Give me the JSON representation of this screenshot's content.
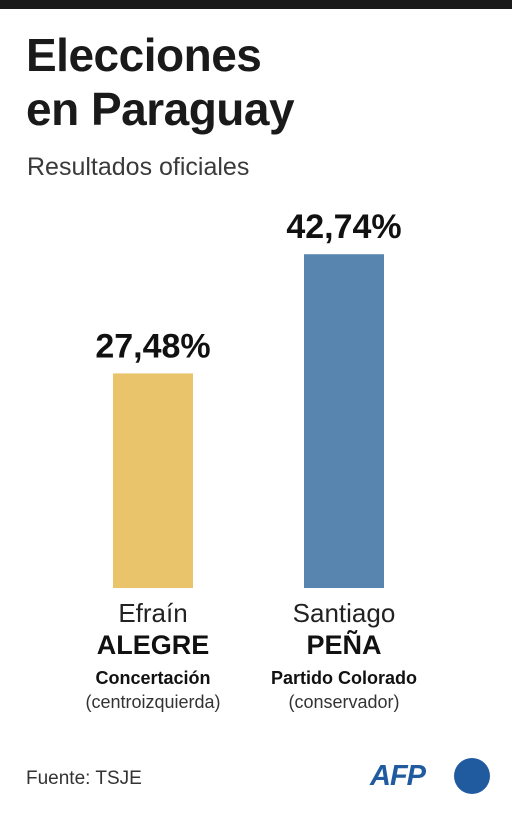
{
  "title": "Elecciones\nen Paraguay",
  "subtitle": "Resultados oficiales",
  "source": "Fuente: TSJE",
  "logo": "AFP",
  "colors": {
    "alegre": "#e9c46a",
    "pena": "#5785b0",
    "text": "#1a1a1a",
    "brand": "#1f5b9e"
  },
  "chart_data": {
    "type": "bar",
    "categories": [
      "Efraín ALEGRE",
      "Santiago PEÑA"
    ],
    "values": [
      27.48,
      42.74
    ],
    "value_labels": [
      "27,48%",
      "42,74%"
    ],
    "ylim": [
      0,
      52.5
    ],
    "grid": false,
    "title": "",
    "xlabel": "",
    "ylabel": ""
  },
  "candidates": [
    {
      "first_name": "Efraín",
      "last_name": "ALEGRE",
      "party": "Concertación",
      "ideology": "(centroizquierda)"
    },
    {
      "first_name": "Santiago",
      "last_name": "PEÑA",
      "party": "Partido Colorado",
      "ideology": "(conservador)"
    }
  ]
}
